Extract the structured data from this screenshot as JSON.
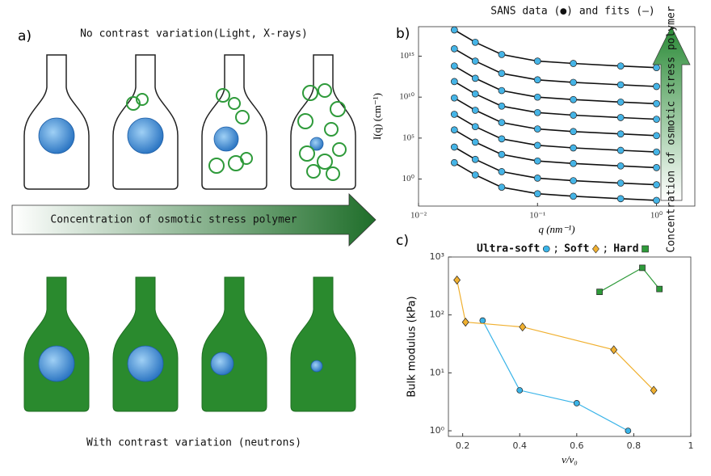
{
  "labels": {
    "a": "a)",
    "b": "b)",
    "c": "c)"
  },
  "panel_a": {
    "top_caption": "No contrast variation(Light, X-rays)",
    "arrow_label": "Concentration of osmotic stress polymer",
    "bottom_caption": "With contrast variation (neutrons)"
  },
  "chart_data": [
    {
      "type": "line",
      "title": "SANS data (●) and fits (—)",
      "x_label": "q (nm⁻¹)",
      "y_label": "I(q) (cm⁻¹)",
      "arrow_label": "Concentration of osmotic stress polymer",
      "x_log": true,
      "y_log": true,
      "xlim": [
        0.01,
        2.1
      ],
      "ylim": [
        0.0005,
        4e+18
      ],
      "xticks": [
        {
          "value": 0.01,
          "label": "10⁻²"
        },
        {
          "value": 0.1,
          "label": "10⁻¹"
        },
        {
          "value": 1,
          "label": "10⁰"
        }
      ],
      "yticks": [
        {
          "value": 1,
          "label": "10⁰"
        },
        {
          "value": 100000,
          "label": "10⁵"
        },
        {
          "value": 10000000000.0,
          "label": "10¹⁰"
        },
        {
          "value": 1000000000000000.0,
          "label": "10¹⁵"
        }
      ],
      "x": [
        0.02,
        0.03,
        0.05,
        0.1,
        0.2,
        0.5,
        1
      ],
      "series": [
        {
          "color": "#45b4e6",
          "values": [
            1.6e+18,
            5e+16,
            1600000000000000.0,
            250000000000000.0,
            130000000000000.0,
            63000000000000.0,
            40000000000000.0
          ]
        },
        {
          "color": "#45b4e6",
          "values": [
            8000000000000000.0,
            250000000000000.0,
            8000000000000.0,
            1300000000000.0,
            630000000000.0,
            320000000000.0,
            200000000000.0
          ]
        },
        {
          "color": "#45b4e6",
          "values": [
            63000000000000.0,
            2000000000000.0,
            63000000000.0,
            10000000000.0,
            5000000000.0,
            2500000000.0,
            1600000000.0
          ]
        },
        {
          "color": "#45b4e6",
          "values": [
            800000000000.0,
            25000000000.0,
            800000000.0,
            130000000.0,
            63000000.0,
            32000000.0,
            20000000.0
          ]
        },
        {
          "color": "#45b4e6",
          "values": [
            8000000000.0,
            250000000.0,
            8000000.0,
            1300000.0,
            630000.0,
            320000.0,
            200000.0
          ]
        },
        {
          "color": "#45b4e6",
          "values": [
            80000000.0,
            2500000.0,
            80000.0,
            13000.0,
            6300,
            3200,
            2000
          ]
        },
        {
          "color": "#45b4e6",
          "values": [
            1000000.0,
            32000.0,
            1000,
            160,
            80,
            40,
            25
          ]
        },
        {
          "color": "#45b4e6",
          "values": [
            8000,
            250,
            8,
            1.3,
            0.63,
            0.32,
            0.2
          ]
        },
        {
          "color": "#45b4e6",
          "values": [
            100,
            3.2,
            0.1,
            0.016,
            0.008,
            0.004,
            0.0025
          ]
        }
      ]
    },
    {
      "type": "line",
      "x_label": "v/v₀",
      "y_label": "Bulk modulus (kPa)",
      "y_log": true,
      "xlim": [
        0.15,
        1
      ],
      "ylim": [
        0.8,
        1000
      ],
      "xticks": [
        0.2,
        0.4,
        0.6,
        0.8,
        1
      ],
      "yticks": [
        {
          "value": 1,
          "label": "10⁰"
        },
        {
          "value": 10,
          "label": "10¹"
        },
        {
          "value": 100,
          "label": "10²"
        },
        {
          "value": 1000,
          "label": "10³"
        }
      ],
      "legend": "top",
      "legend_separator": ";",
      "series": [
        {
          "name": "Ultra-soft",
          "color": "#3ab4e8",
          "marker": "circle",
          "x": [
            0.27,
            0.4,
            0.6,
            0.78
          ],
          "values": [
            80,
            5,
            3,
            1
          ]
        },
        {
          "name": "Soft",
          "color": "#f0b030",
          "marker": "diamond",
          "x": [
            0.18,
            0.21,
            0.41,
            0.73,
            0.87
          ],
          "values": [
            400,
            75,
            62,
            25,
            5
          ]
        },
        {
          "name": "Hard",
          "color": "#2e9a3a",
          "marker": "square",
          "x": [
            0.68,
            0.83,
            0.89
          ],
          "values": [
            250,
            650,
            280
          ]
        }
      ]
    }
  ]
}
